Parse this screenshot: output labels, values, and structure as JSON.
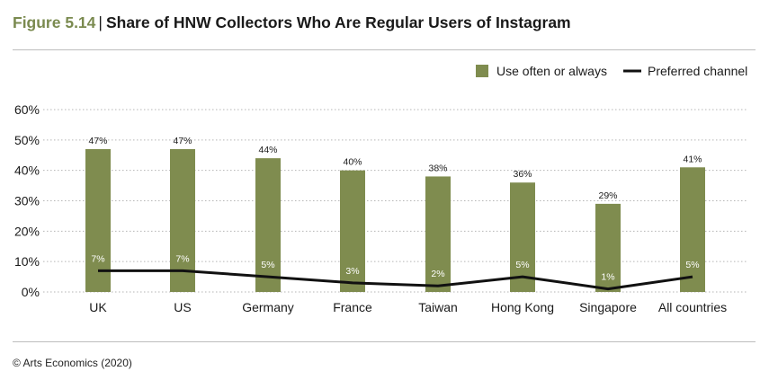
{
  "header": {
    "figure_label": "Figure 5.14",
    "separator": "|",
    "title": "Share of HNW Collectors Who Are Regular Users of Instagram"
  },
  "footer": {
    "source": "© Arts Economics (2020)"
  },
  "colors": {
    "bar": "#7f8c4f",
    "line": "#111111",
    "grid": "#b5b5b5",
    "figure_label": "#7a8a4f",
    "inner_label": "#ffffff"
  },
  "chart_data": {
    "type": "bar",
    "title": "Share of HNW Collectors Who Are Regular Users of Instagram",
    "categories": [
      "UK",
      "US",
      "Germany",
      "France",
      "Taiwan",
      "Hong Kong",
      "Singapore",
      "All countries"
    ],
    "series": [
      {
        "name": "Use often or always",
        "type": "bar",
        "values": [
          47,
          47,
          44,
          40,
          38,
          36,
          29,
          41
        ]
      },
      {
        "name": "Preferred channel",
        "type": "line",
        "values": [
          7,
          7,
          5,
          3,
          2,
          5,
          1,
          5
        ]
      }
    ],
    "ylim": [
      0,
      60
    ],
    "yticks": [
      0,
      10,
      20,
      30,
      40,
      50,
      60
    ],
    "y_tick_format": "percent",
    "grid": "horizontal-dotted",
    "legend_position": "top-right"
  }
}
